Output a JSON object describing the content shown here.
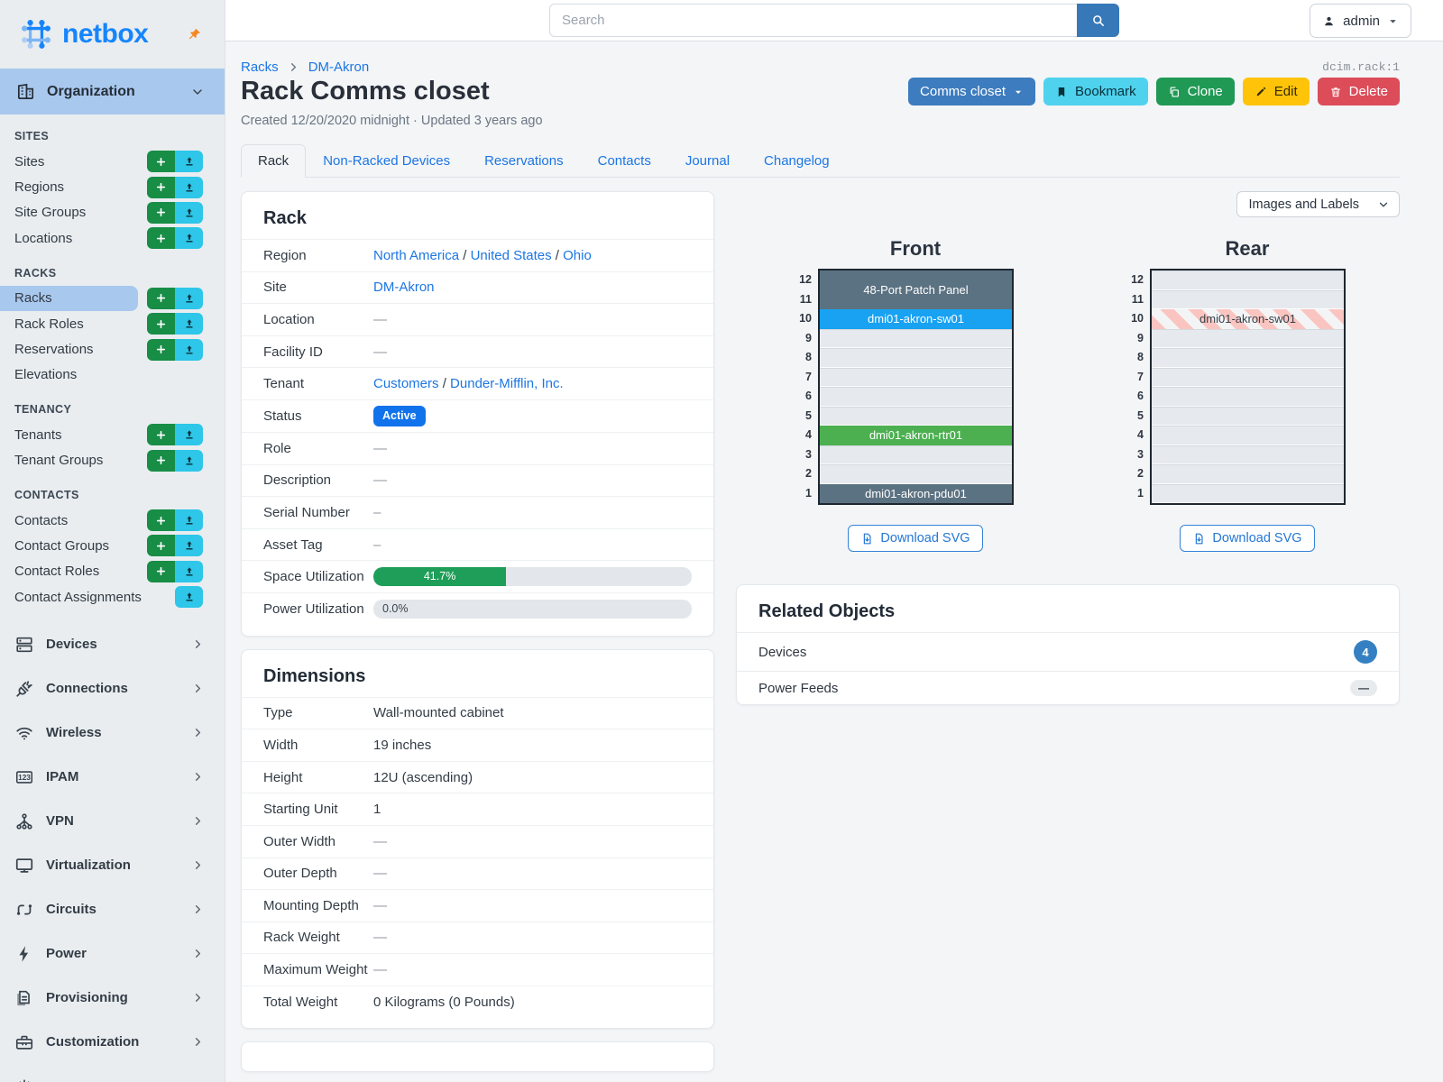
{
  "brand": {
    "name": "netbox",
    "logo_icon": "netbox-mark",
    "pin_icon": "pin"
  },
  "topbar": {
    "search_placeholder": "Search",
    "search_icon": "search",
    "user_icon": "person",
    "user_label": "admin"
  },
  "sidebar": {
    "organization": {
      "label": "Organization",
      "icon": "building"
    },
    "sections": [
      {
        "title": "SITES",
        "items": [
          {
            "label": "Sites",
            "add": true,
            "import": true
          },
          {
            "label": "Regions",
            "add": true,
            "import": true
          },
          {
            "label": "Site Groups",
            "add": true,
            "import": true
          },
          {
            "label": "Locations",
            "add": true,
            "import": true
          }
        ]
      },
      {
        "title": "RACKS",
        "items": [
          {
            "label": "Racks",
            "active": true,
            "add": true,
            "import": true
          },
          {
            "label": "Rack Roles",
            "add": true,
            "import": true
          },
          {
            "label": "Reservations",
            "add": true,
            "import": true
          },
          {
            "label": "Elevations"
          }
        ]
      },
      {
        "title": "TENANCY",
        "items": [
          {
            "label": "Tenants",
            "add": true,
            "import": true
          },
          {
            "label": "Tenant Groups",
            "add": true,
            "import": true
          }
        ]
      },
      {
        "title": "CONTACTS",
        "items": [
          {
            "label": "Contacts",
            "add": true,
            "import": true
          },
          {
            "label": "Contact Groups",
            "add": true,
            "import": true
          },
          {
            "label": "Contact Roles",
            "add": true,
            "import": true
          },
          {
            "label": "Contact Assignments",
            "import": true
          }
        ]
      }
    ],
    "modules": [
      {
        "label": "Devices",
        "icon": "devices"
      },
      {
        "label": "Connections",
        "icon": "connections"
      },
      {
        "label": "Wireless",
        "icon": "wireless"
      },
      {
        "label": "IPAM",
        "icon": "ipam"
      },
      {
        "label": "VPN",
        "icon": "vpn"
      },
      {
        "label": "Virtualization",
        "icon": "virtualization"
      },
      {
        "label": "Circuits",
        "icon": "circuits"
      },
      {
        "label": "Power",
        "icon": "power"
      },
      {
        "label": "Provisioning",
        "icon": "provisioning"
      },
      {
        "label": "Customization",
        "icon": "customization"
      }
    ]
  },
  "page": {
    "breadcrumbs": [
      {
        "label": "Racks"
      },
      {
        "label": "DM-Akron"
      }
    ],
    "object_id": "dcim.rack:1",
    "title": "Rack Comms closet",
    "meta": "Created 12/20/2020 midnight · Updated 3 years ago",
    "actions": [
      {
        "label": "Comms closet",
        "style": "primary",
        "caret": true
      },
      {
        "label": "Bookmark",
        "icon": "bookmark",
        "style": "info"
      },
      {
        "label": "Clone",
        "icon": "copy",
        "style": "success"
      },
      {
        "label": "Edit",
        "icon": "pencil",
        "style": "warning"
      },
      {
        "label": "Delete",
        "icon": "trash",
        "style": "danger"
      }
    ]
  },
  "tabs": [
    {
      "label": "Rack",
      "active": true
    },
    {
      "label": "Non-Racked Devices"
    },
    {
      "label": "Reservations"
    },
    {
      "label": "Contacts"
    },
    {
      "label": "Journal"
    },
    {
      "label": "Changelog"
    }
  ],
  "rack_panel": {
    "title": "Rack",
    "rows": [
      {
        "label": "Region",
        "type": "links",
        "parts": [
          "North America",
          "United States",
          "Ohio"
        ]
      },
      {
        "label": "Site",
        "type": "links",
        "parts": [
          "DM-Akron"
        ]
      },
      {
        "label": "Location",
        "type": "text",
        "value": "—"
      },
      {
        "label": "Facility ID",
        "type": "text",
        "value": "—"
      },
      {
        "label": "Tenant",
        "type": "links",
        "parts": [
          "Customers",
          "Dunder-Mifflin, Inc."
        ]
      },
      {
        "label": "Status",
        "type": "badge",
        "value": "Active",
        "color": "#1173ec"
      },
      {
        "label": "Role",
        "type": "text",
        "value": "—"
      },
      {
        "label": "Description",
        "type": "text",
        "value": "—"
      },
      {
        "label": "Serial Number",
        "type": "text",
        "value": "–"
      },
      {
        "label": "Asset Tag",
        "type": "text",
        "value": "–"
      },
      {
        "label": "Space Utilization",
        "type": "progress",
        "text": "41.7%",
        "percent": 41.7,
        "fill": "#1e9e58"
      },
      {
        "label": "Power Utilization",
        "type": "progress",
        "text": "0.0%",
        "percent": 0
      }
    ]
  },
  "dimensions_panel": {
    "title": "Dimensions",
    "rows": [
      {
        "label": "Type",
        "type": "text",
        "value": "Wall-mounted cabinet"
      },
      {
        "label": "Width",
        "type": "text",
        "value": "19 inches"
      },
      {
        "label": "Height",
        "type": "text",
        "value": "12U (ascending)"
      },
      {
        "label": "Starting Unit",
        "type": "text",
        "value": "1"
      },
      {
        "label": "Outer Width",
        "type": "text",
        "value": "—"
      },
      {
        "label": "Outer Depth",
        "type": "text",
        "value": "—"
      },
      {
        "label": "Mounting Depth",
        "type": "text",
        "value": "—"
      },
      {
        "label": "Rack Weight",
        "type": "text",
        "value": "—"
      },
      {
        "label": "Maximum Weight",
        "type": "text",
        "value": "—"
      },
      {
        "label": "Total Weight",
        "type": "text",
        "value": "0 Kilograms (0 Pounds)"
      }
    ]
  },
  "elevations": {
    "view_select_value": "Images and Labels",
    "download_label": "Download SVG",
    "download_icon": "file-download",
    "top_unit": 12,
    "unit_count": 12,
    "views": [
      {
        "title": "Front",
        "devices": [
          {
            "name": "48-Port Patch Panel",
            "top_u": 12,
            "u_height": 2,
            "color": "#5b7282",
            "text_color": "#ffffff"
          },
          {
            "name": "dmi01-akron-sw01",
            "top_u": 10,
            "u_height": 1,
            "color": "#19a2f2",
            "text_color": "#ffffff"
          },
          {
            "name": "dmi01-akron-rtr01",
            "top_u": 4,
            "u_height": 1,
            "color": "#4cb050",
            "text_color": "#ffffff"
          },
          {
            "name": "dmi01-akron-pdu01",
            "top_u": 1,
            "u_height": 1,
            "color": "#5b7282",
            "text_color": "#ffffff"
          }
        ]
      },
      {
        "title": "Rear",
        "devices": [
          {
            "name": "dmi01-akron-sw01",
            "top_u": 10,
            "u_height": 1,
            "pattern": "striped",
            "stripe_colors": [
              "#fac5c0",
              "#f3f4f5"
            ],
            "text_color": "#37404a"
          }
        ]
      }
    ]
  },
  "related_panel": {
    "title": "Related Objects",
    "rows": [
      {
        "label": "Devices",
        "badge": "4",
        "badge_style": "count"
      },
      {
        "label": "Power Feeds",
        "badge": "—",
        "badge_style": "empty"
      }
    ]
  }
}
